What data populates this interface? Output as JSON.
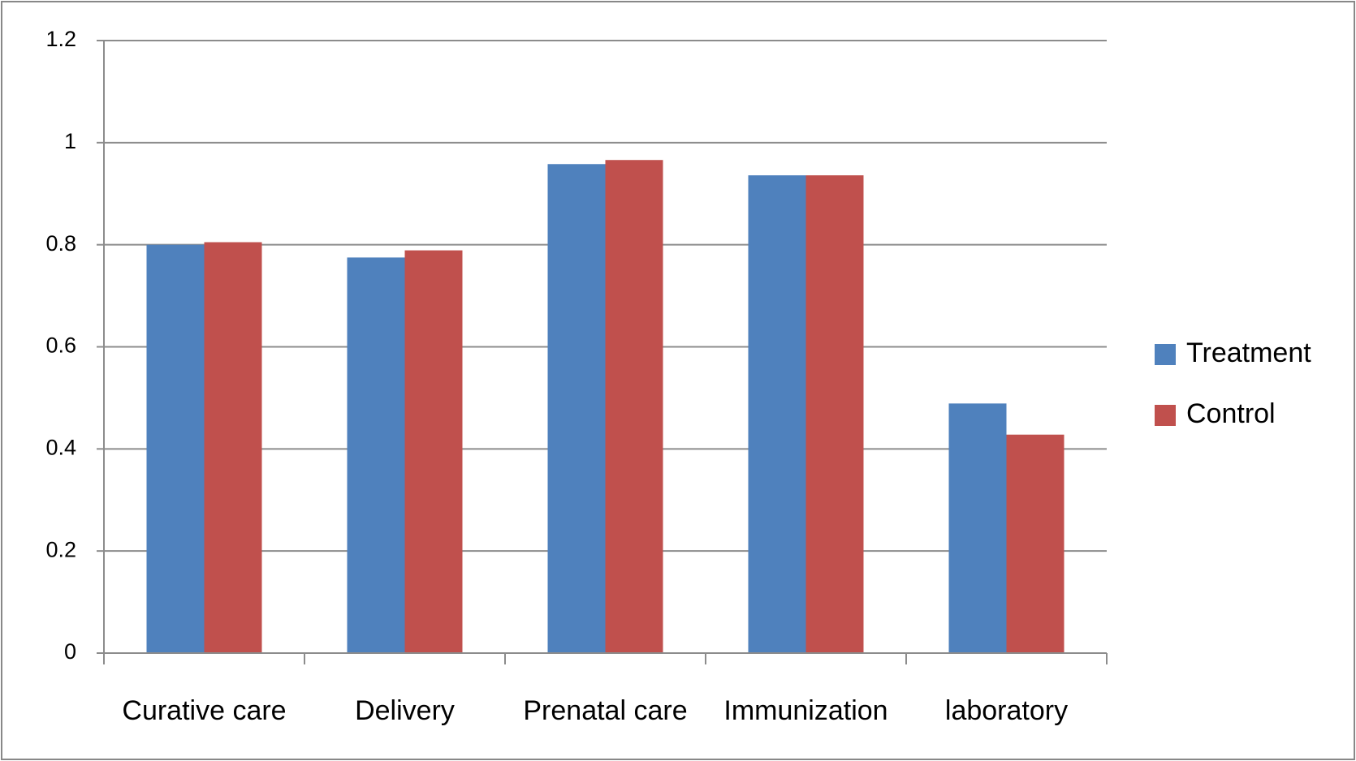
{
  "chart_data": {
    "type": "bar",
    "categories": [
      "Curative care",
      "Delivery",
      "Prenatal care",
      "Immunization",
      "laboratory"
    ],
    "series": [
      {
        "name": "Treatment",
        "color": "#4f81bd",
        "values": [
          0.8,
          0.775,
          0.958,
          0.936,
          0.489
        ]
      },
      {
        "name": "Control",
        "color": "#c0504d",
        "values": [
          0.805,
          0.789,
          0.966,
          0.936,
          0.428
        ]
      }
    ],
    "ylim": [
      0,
      1.2
    ],
    "yticks": [
      0,
      0.2,
      0.4,
      0.6,
      0.8,
      1,
      1.2
    ],
    "grid": true,
    "legend": "right"
  }
}
